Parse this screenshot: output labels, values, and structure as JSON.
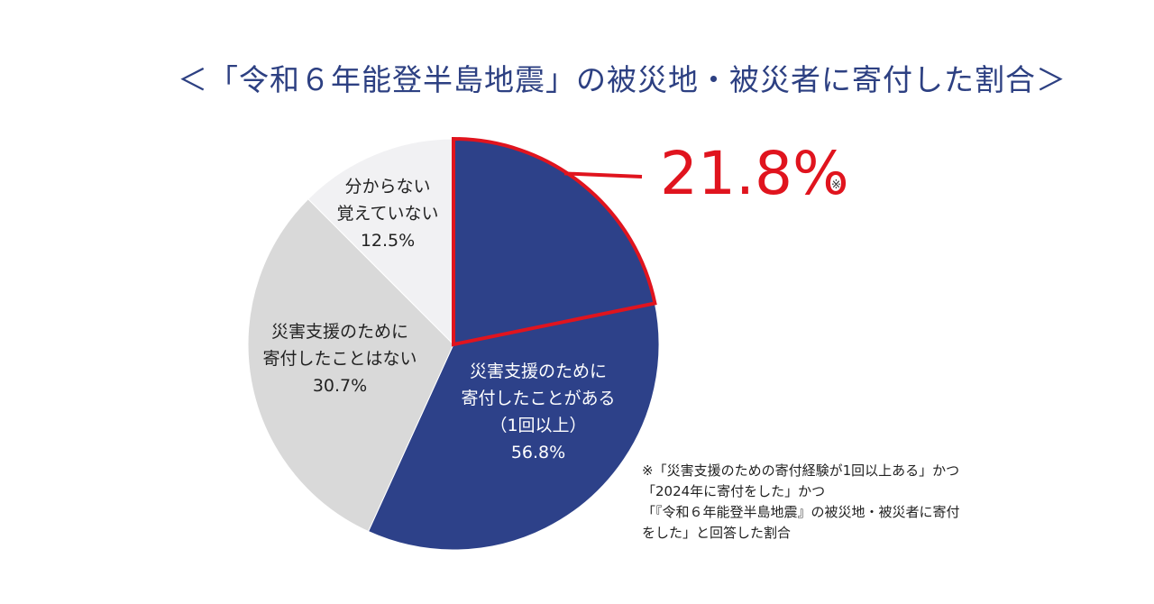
{
  "title": "＜「令和６年能登半島地震」の被災地・被災者に寄付した割合＞",
  "highlight": {
    "value": "21.8%",
    "mark": "※"
  },
  "footnote": [
    "※「災害支援のための寄付経験が1回以上ある」かつ",
    "「2024年に寄付をした」かつ",
    "「『令和６年能登半島地震』の被災地・被災者に寄付",
    "をした」と回答した割合"
  ],
  "colors": {
    "navy": "#2d4189",
    "light_gray": "#d9d9d9",
    "lighter_gray": "#f1f1f3",
    "accent_red": "#e0141e",
    "title_blue": "#2d4082"
  },
  "chart_data": {
    "type": "pie",
    "start": "12 o'clock",
    "direction": "clockwise",
    "slices": [
      {
        "label_lines": [
          "災害支援のために",
          "寄付したことがある",
          "（1回以上）"
        ],
        "value": 56.8,
        "value_label": "56.8%",
        "color": "#2d4189",
        "text_color": "#ffffff"
      },
      {
        "label_lines": [
          "災害支援のために",
          "寄付したことはない"
        ],
        "value": 30.7,
        "value_label": "30.7%",
        "color": "#d9d9d9",
        "text_color": "#222222"
      },
      {
        "label_lines": [
          "分からない",
          "覚えていない"
        ],
        "value": 12.5,
        "value_label": "12.5%",
        "color": "#f1f1f3",
        "text_color": "#222222"
      }
    ],
    "highlight_subset": {
      "value": 21.8,
      "value_label": "21.8%",
      "of_slice": 0,
      "outline_color": "#e0141e"
    }
  }
}
